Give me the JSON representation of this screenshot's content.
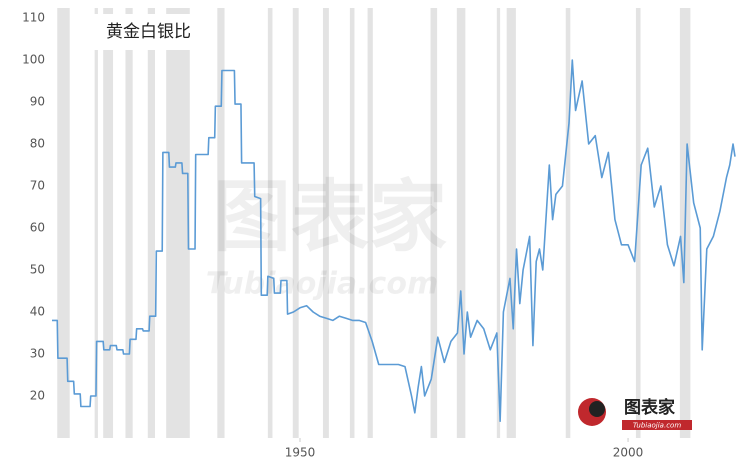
{
  "chart_data": {
    "type": "line",
    "title": "黄金白银比",
    "series": [
      {
        "color": "#5b9bd5",
        "x": [
          1912.2,
          1913,
          1913.1,
          1914.5,
          1914.6,
          1915.5,
          1915.6,
          1916.5,
          1916.6,
          1918,
          1918.1,
          1918.9,
          1919,
          1920,
          1920.1,
          1921,
          1921.1,
          1922,
          1922.1,
          1923,
          1923.1,
          1924,
          1924.1,
          1925,
          1925.1,
          1926,
          1926.1,
          1927,
          1927.1,
          1928,
          1928.1,
          1929,
          1929.1,
          1930,
          1930.1,
          1931,
          1931.1,
          1932,
          1932.1,
          1932.9,
          1933,
          1934,
          1934.1,
          1936,
          1936.1,
          1937,
          1937.1,
          1938,
          1938.1,
          1940,
          1940.1,
          1941,
          1941.1,
          1943,
          1943.1,
          1944,
          1944.1,
          1945,
          1945.1,
          1946,
          1946.1,
          1947,
          1947.1,
          1948,
          1948.1,
          1949,
          1950,
          1951,
          1952,
          1953,
          1954,
          1955,
          1956,
          1957,
          1958,
          1959,
          1960,
          1961,
          1962,
          1965,
          1966,
          1967,
          1967.5,
          1968,
          1968.5,
          1969,
          1970,
          1971,
          1972,
          1973,
          1974,
          1974.5,
          1975,
          1975.5,
          1976,
          1977,
          1978,
          1979,
          1980,
          1980.5,
          1981,
          1982,
          1982.5,
          1983,
          1983.5,
          1984,
          1985,
          1985.5,
          1986,
          1986.5,
          1987,
          1988,
          1988.5,
          1989,
          1990,
          1991,
          1991.5,
          1992,
          1993,
          1994,
          1995,
          1996,
          1997,
          1998,
          1999,
          2000,
          2001,
          2002,
          2003,
          2004,
          2005,
          2006,
          2007,
          2008,
          2008.5,
          2009,
          2010,
          2011,
          2011.3,
          2012,
          2013,
          2014,
          2015,
          2015.5,
          2016,
          2016.3
        ],
        "values": [
          38,
          38,
          29,
          29,
          23.5,
          23.5,
          20.5,
          20.5,
          17.5,
          17.5,
          20,
          20,
          33,
          33,
          31,
          31,
          32,
          32,
          31,
          31,
          30,
          30,
          33.5,
          33.5,
          36,
          36,
          35.5,
          35.5,
          39,
          39,
          54.5,
          54.5,
          78,
          78,
          74.5,
          74.5,
          75.5,
          75.5,
          73,
          73,
          55,
          55,
          77.5,
          77.5,
          81.5,
          81.5,
          89,
          89,
          97.5,
          97.5,
          89.5,
          89.5,
          75.5,
          75.5,
          67.5,
          67,
          44,
          44,
          48.5,
          48,
          44.5,
          44.5,
          47.5,
          47.5,
          39.5,
          40,
          41,
          41.5,
          40,
          39,
          38.5,
          38,
          39,
          38.5,
          38,
          38,
          37.5,
          33,
          27.5,
          27.5,
          27,
          20,
          16,
          22,
          27,
          20,
          24,
          34,
          28,
          33,
          35,
          45,
          30,
          40,
          34,
          38,
          36,
          31,
          35,
          14,
          40,
          48,
          36,
          55,
          42,
          50,
          58,
          32,
          52,
          55,
          50,
          75,
          62,
          68,
          70,
          85,
          100,
          88,
          95,
          80,
          82,
          72,
          78,
          62,
          56,
          56,
          52,
          75,
          79,
          65,
          70,
          56,
          51,
          58,
          47,
          80,
          66,
          60,
          31,
          55,
          58,
          64,
          72,
          75,
          80,
          77
        ]
      }
    ],
    "recessions": [
      [
        1913.0,
        1914.9
      ],
      [
        1918.7,
        1919.2
      ],
      [
        1920.0,
        1921.5
      ],
      [
        1923.4,
        1924.5
      ],
      [
        1926.8,
        1927.9
      ],
      [
        1929.6,
        1933.2
      ],
      [
        1937.4,
        1938.5
      ],
      [
        1945.1,
        1945.8
      ],
      [
        1948.9,
        1949.8
      ],
      [
        1953.5,
        1954.4
      ],
      [
        1957.6,
        1958.3
      ],
      [
        1960.3,
        1961.1
      ],
      [
        1969.9,
        1970.9
      ],
      [
        1973.9,
        1975.2
      ],
      [
        1980.0,
        1980.5
      ],
      [
        1981.5,
        1982.9
      ],
      [
        1990.5,
        1991.2
      ],
      [
        2001.2,
        2001.9
      ],
      [
        2007.9,
        2009.5
      ]
    ],
    "recession_color": "#e3e3e3",
    "xlim": [
      1912.2,
      2016.3
    ],
    "xticks": [
      1950,
      2000
    ],
    "ylim": [
      10,
      110
    ],
    "yticks": [
      20,
      30,
      40,
      50,
      60,
      70,
      80,
      90,
      100,
      110
    ],
    "watermark": "图表家",
    "watermark_url": "Tubiaojia.com",
    "logo": "图表家",
    "logo_url": "Tubiaojia.com"
  }
}
